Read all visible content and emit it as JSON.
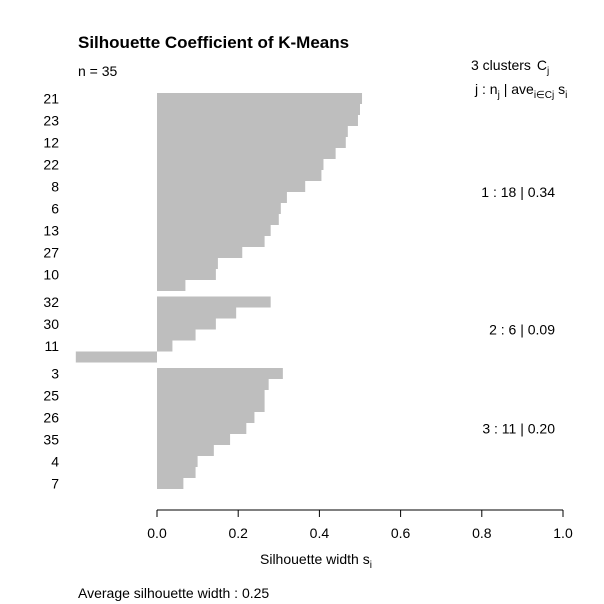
{
  "chart_data": {
    "type": "bar",
    "orientation": "horizontal",
    "title": "Silhouette Coefficient of K-Means",
    "subtitle": "n = 35",
    "legend_header": {
      "count_text": "3  clusters",
      "count_symbol": "C",
      "count_symbol_sub": "j",
      "columns_prefix": "j :  n",
      "columns_n_sub": "j",
      "columns_middle": " | ave",
      "columns_ave_sub": "i∈Cj",
      "columns_s": "  s",
      "columns_s_sub": "i"
    },
    "xlabel": "Silhouette width s",
    "xlabel_sub": "i",
    "xlim": [
      0,
      1
    ],
    "xticks": [
      "0.0",
      "0.2",
      "0.4",
      "0.6",
      "0.8",
      "1.0"
    ],
    "clusters": [
      {
        "id": 1,
        "n": 18,
        "avg": 0.34,
        "label": "1 :   18  |  0.34",
        "values": [
          0.505,
          0.5,
          0.495,
          0.47,
          0.465,
          0.44,
          0.41,
          0.405,
          0.365,
          0.32,
          0.305,
          0.3,
          0.28,
          0.265,
          0.21,
          0.15,
          0.145,
          0.07
        ]
      },
      {
        "id": 2,
        "n": 6,
        "avg": 0.09,
        "label": "2 :   6  |  0.09",
        "values": [
          0.28,
          0.195,
          0.145,
          0.095,
          0.038,
          -0.2
        ]
      },
      {
        "id": 3,
        "n": 11,
        "avg": 0.2,
        "label": "3 :   11  |  0.20",
        "values": [
          0.31,
          0.275,
          0.265,
          0.265,
          0.24,
          0.22,
          0.18,
          0.14,
          0.1,
          0.095,
          0.065
        ]
      }
    ],
    "row_labels": [
      "21",
      "",
      "23",
      "",
      "12",
      "",
      "22",
      "",
      "8",
      "",
      "6",
      "",
      "13",
      "",
      "27",
      "",
      "10",
      "",
      "32",
      "",
      "30",
      "",
      "11",
      "",
      "3",
      "",
      "25",
      "",
      "26",
      "",
      "35",
      "",
      "4",
      "",
      "7"
    ],
    "footer": "Average silhouette width :  0.25"
  }
}
